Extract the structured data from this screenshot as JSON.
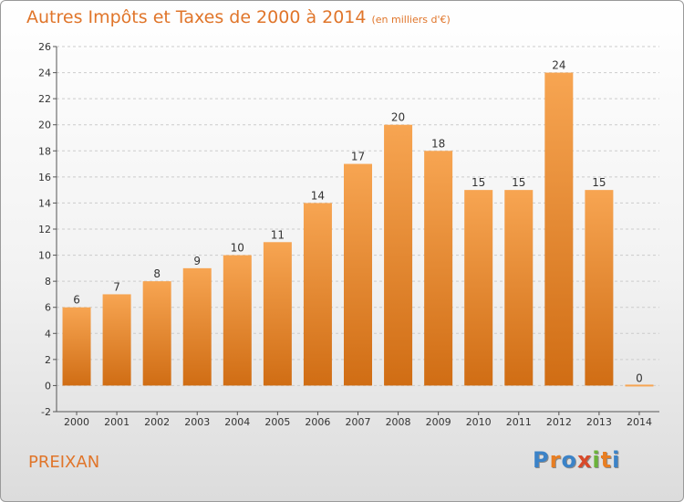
{
  "title": "Autres Impôts et Taxes de 2000 à 2014",
  "subtitle": "(en milliers d'€)",
  "commune": "PREIXAN",
  "logo": {
    "letters": [
      "P",
      "r",
      "o",
      "x",
      "i",
      "t",
      "i"
    ],
    "colors": [
      "#3b83c8",
      "#e87e22",
      "#3b83c8",
      "#d84a2a",
      "#6bb33a",
      "#e87e22",
      "#3b83c8"
    ]
  },
  "colors": {
    "bar_top": "#f7a552",
    "bar_bottom": "#d06d14",
    "accent": "#e0752a",
    "grid": "#cccccc"
  },
  "chart_data": {
    "type": "bar",
    "categories": [
      "2000",
      "2001",
      "2002",
      "2003",
      "2004",
      "2005",
      "2006",
      "2007",
      "2008",
      "2009",
      "2010",
      "2011",
      "2012",
      "2013",
      "2014"
    ],
    "values": [
      6,
      7,
      8,
      9,
      10,
      11,
      14,
      17,
      20,
      18,
      15,
      15,
      24,
      15,
      0
    ],
    "title": "Autres Impôts et Taxes de 2000 à 2014",
    "xlabel": "",
    "ylabel": "",
    "ylim": [
      -2,
      26
    ],
    "yticks": [
      -2,
      0,
      2,
      4,
      6,
      8,
      10,
      12,
      14,
      16,
      18,
      20,
      22,
      24,
      26
    ],
    "grid": true
  }
}
